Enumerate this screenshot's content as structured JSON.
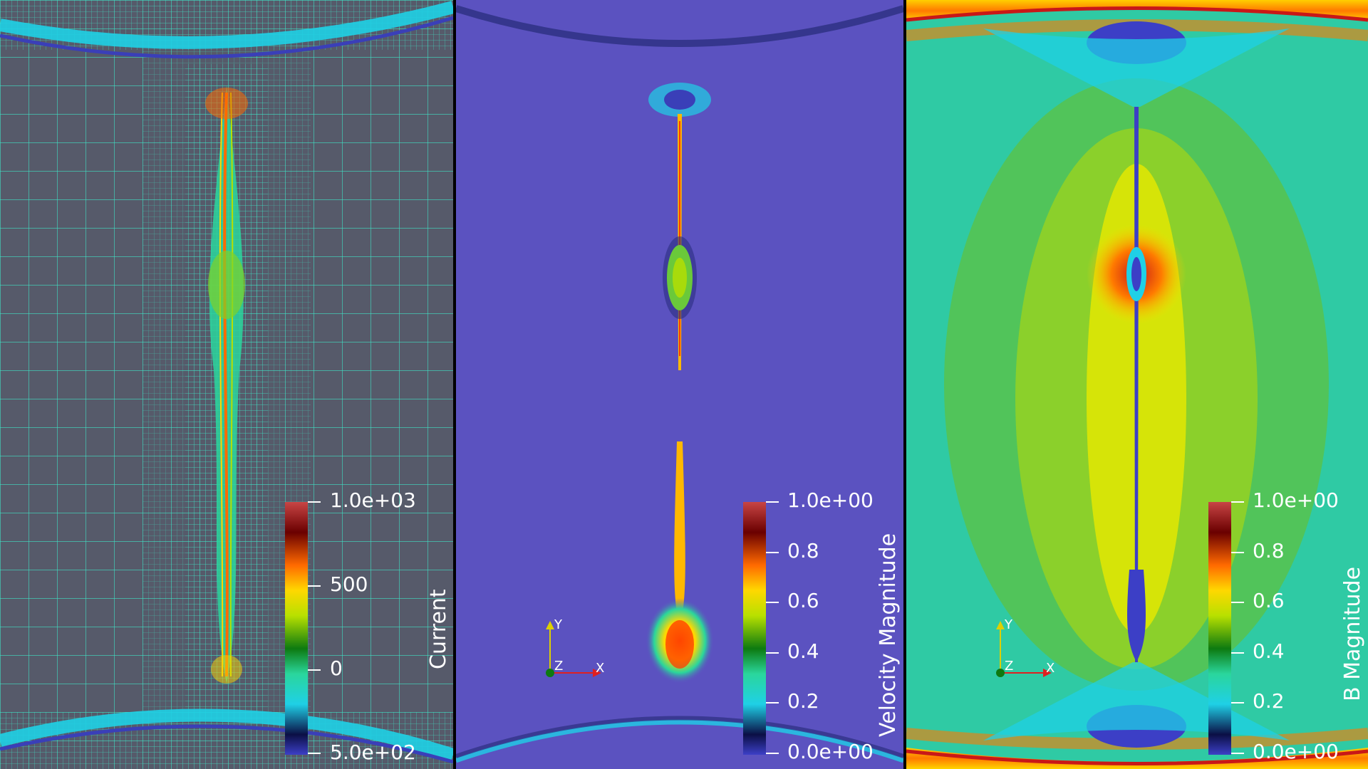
{
  "panels": [
    {
      "id": "current",
      "legend": {
        "title": "Current",
        "labels": [
          "1.0e+03",
          "500",
          "0",
          "5.0e+02"
        ]
      }
    },
    {
      "id": "velocity",
      "legend": {
        "title": "Velocity Magnitude",
        "labels": [
          "1.0e+00",
          "0.8",
          "0.6",
          "0.4",
          "0.2",
          "0.0e+00"
        ]
      },
      "axes": {
        "x": "X",
        "y": "Y",
        "z": "Z"
      }
    },
    {
      "id": "bmag",
      "legend": {
        "title": "B Magnitude",
        "labels": [
          "1.0e+00",
          "0.8",
          "0.6",
          "0.4",
          "0.2",
          "0.0e+00"
        ]
      },
      "axes": {
        "x": "X",
        "y": "Y",
        "z": "Z"
      }
    }
  ],
  "colors": {
    "grid_bg": "#565a6a",
    "grid_line": "#3fe1c4",
    "velocity_bg": "#5b52c0",
    "bfield_bg": "#2fcaa4",
    "divider": "#000000"
  }
}
